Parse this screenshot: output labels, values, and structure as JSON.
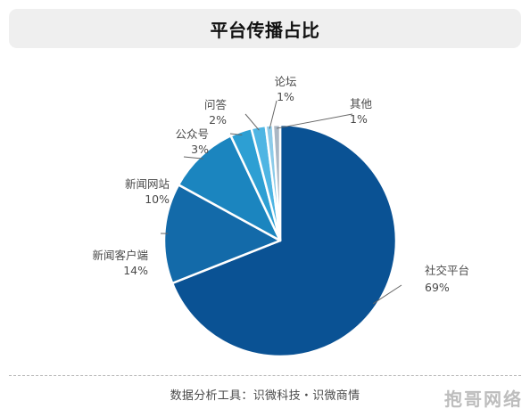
{
  "chart_data": {
    "type": "pie",
    "title": "平台传播占比",
    "slices": [
      {
        "label": "社交平台",
        "value": 69,
        "display": "69%",
        "color": "#0a5294"
      },
      {
        "label": "新闻客户端",
        "value": 14,
        "display": "14%",
        "color": "#136aa9"
      },
      {
        "label": "新闻网站",
        "value": 10,
        "display": "10%",
        "color": "#1b85bf"
      },
      {
        "label": "公众号",
        "value": 3,
        "display": "3%",
        "color": "#2d9fd3"
      },
      {
        "label": "问答",
        "value": 2,
        "display": "2%",
        "color": "#4eb5e3"
      },
      {
        "label": "论坛",
        "value": 1,
        "display": "1%",
        "color": "#8ccbe9"
      },
      {
        "label": "其他",
        "value": 1,
        "display": "1%",
        "color": "#aab7c4"
      }
    ]
  },
  "footer": {
    "source": "数据分析工具：识微科技・识微商情"
  },
  "watermark": "抱哥网络"
}
